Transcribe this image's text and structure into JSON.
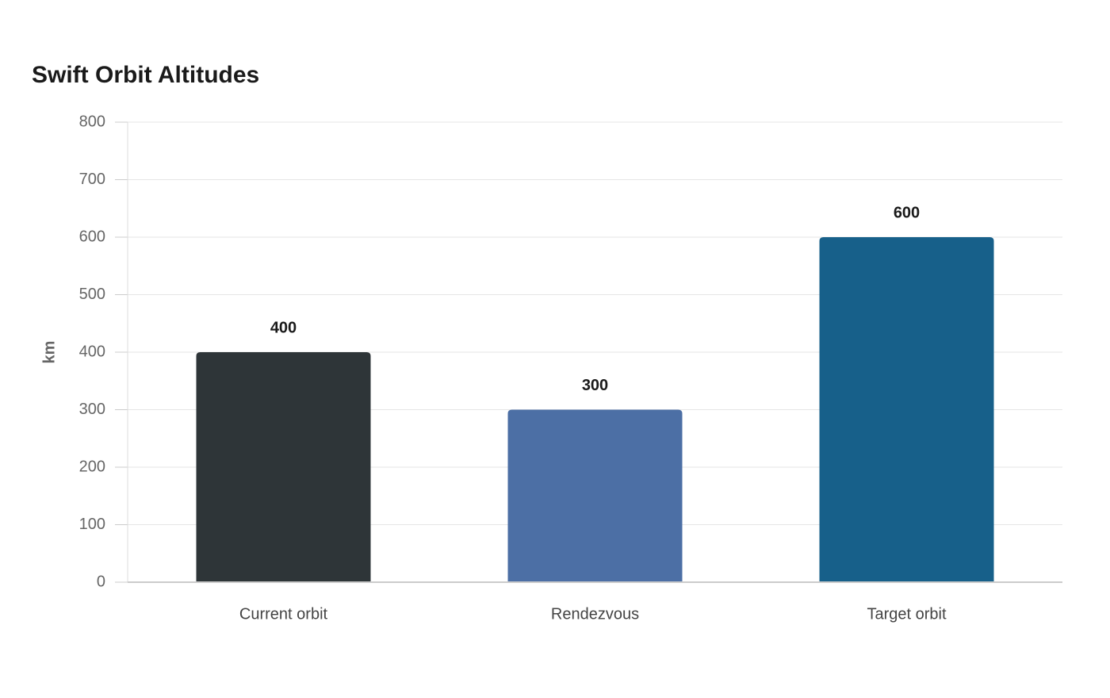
{
  "chart_data": {
    "type": "bar",
    "title": "Swift Orbit Altitudes",
    "y_label": "km",
    "categories": [
      "Current orbit",
      "Rendezvous",
      "Target orbit"
    ],
    "values": [
      400,
      300,
      600
    ],
    "colors": [
      "#2e3538",
      "#4c6fa5",
      "#17608a"
    ],
    "ylim": [
      0,
      800
    ],
    "yticks": [
      0,
      100,
      200,
      300,
      400,
      500,
      600,
      700,
      800
    ],
    "grid": true
  }
}
